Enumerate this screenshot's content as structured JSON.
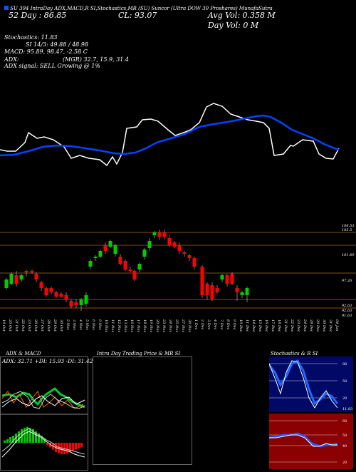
{
  "header": {
    "top_line": "SU 394 IntraDay ADX,MACD,R    SI,Stochastics,MR    (SU) Suncor    (Ultra DOW 30 Proshares) MunafaSutra",
    "week_range": "52 Day  : 86.85",
    "close": "CL: 93.07",
    "avg_vol": "Avg Vol: 0.358  M",
    "day_vol": "Day Vol: 0   M",
    "stochastics": "Stochastics: 11.83",
    "si": "SI 14/3: 49.88 / 48.98",
    "macd": "MACD: 95.89, 98.47, -2.58  C",
    "adx": "ADX:",
    "mgr": "(MGR) 32.7,  15.9,  31.4",
    "adx_signal": "ADX  signal: SELL Growing @ 1%"
  },
  "colors": {
    "up": "#00cc00",
    "down": "#ff0000",
    "blue": "#0044ff",
    "grid": "#b06b1c"
  },
  "price_axis": {
    "labels": [
      "106.53",
      "105.5",
      "101.89",
      "97.26",
      "92.63",
      "92.63",
      "91.63"
    ]
  },
  "dates": [
    "19 Oct",
    "20 Oct",
    "21 Oct",
    "22 Oct",
    "23 Oct",
    "26 Oct",
    "27 Oct",
    "28 Oct",
    "29 Oct",
    "30 Oct",
    "2 Nov",
    "3 Nov",
    "4 Nov",
    "5 Nov",
    "6 Nov",
    "9 Nov",
    "10 Nov",
    "11 Nov",
    "12 Nov",
    "13 Nov",
    "16 Nov",
    "17 Nov",
    "18 Nov",
    "19 Nov",
    "20 Nov",
    "23 Nov",
    "24 Nov",
    "25 Nov",
    "27 Nov",
    "30 Nov",
    "1 Dec",
    "2 Dec",
    "3 Dec",
    "4 Dec",
    "7 Dec",
    "8 Dec",
    "9 Dec",
    "10 Dec",
    "11 Dec",
    "14 Dec",
    "15 Dec",
    "16 Dec",
    "17 Dec",
    "18 Dec",
    "21 Dec",
    "22 Dec",
    "23 Dec",
    "24 Dec",
    "28 Dec",
    "29 Dec",
    "30 Dec",
    "31 Dec",
    "04 Jan"
  ],
  "panels": {
    "adx_title": "ADX  & MACD",
    "adx_readout": "ADX: 32.71 +DI: 15.93 -DI: 31.42",
    "intra_title": "Intra  Day Trading Price  & MR                    SI",
    "stoch_title": "Stochastics & R                  SI",
    "stoch_axis": [
      "80",
      "50",
      "20",
      "11.83"
    ],
    "mr_axis": [
      "60",
      "50",
      "40",
      "20"
    ]
  }
}
